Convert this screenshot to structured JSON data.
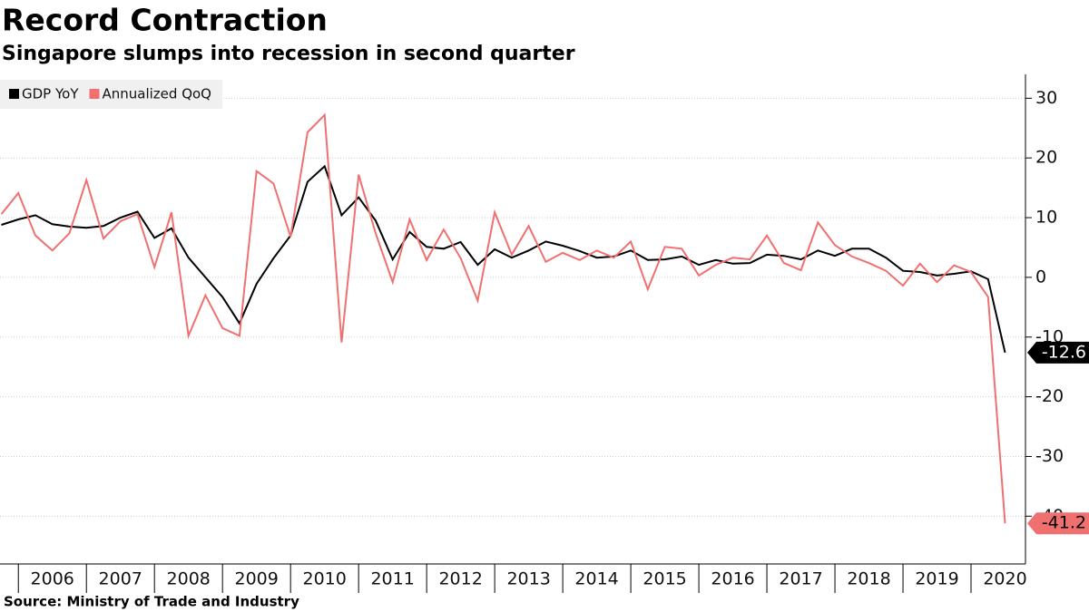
{
  "chart_data": {
    "type": "line",
    "title": "Record Contraction",
    "subtitle": "Singapore slumps into recession in second quarter",
    "source": "Source: Ministry of Trade and Industry",
    "legend_position": "top-left",
    "grid": true,
    "x": [
      2005.75,
      2006,
      2006.25,
      2006.5,
      2006.75,
      2007,
      2007.25,
      2007.5,
      2007.75,
      2008,
      2008.25,
      2008.5,
      2008.75,
      2009,
      2009.25,
      2009.5,
      2009.75,
      2010,
      2010.25,
      2010.5,
      2010.75,
      2011,
      2011.25,
      2011.5,
      2011.75,
      2012,
      2012.25,
      2012.5,
      2012.75,
      2013,
      2013.25,
      2013.5,
      2013.75,
      2014,
      2014.25,
      2014.5,
      2014.75,
      2015,
      2015.25,
      2015.5,
      2015.75,
      2016,
      2016.25,
      2016.5,
      2016.75,
      2017,
      2017.25,
      2017.5,
      2017.75,
      2018,
      2018.25,
      2018.5,
      2018.75,
      2019,
      2019.25,
      2019.5,
      2019.75,
      2020,
      2020.25,
      2020.5
    ],
    "xlim": [
      2005.73,
      2020.8
    ],
    "xticks": [
      {
        "value": 2006.5,
        "label": "2006"
      },
      {
        "value": 2007.5,
        "label": "2007"
      },
      {
        "value": 2008.5,
        "label": "2008"
      },
      {
        "value": 2009.5,
        "label": "2009"
      },
      {
        "value": 2010.5,
        "label": "2010"
      },
      {
        "value": 2011.5,
        "label": "2011"
      },
      {
        "value": 2012.5,
        "label": "2012"
      },
      {
        "value": 2013.5,
        "label": "2013"
      },
      {
        "value": 2014.5,
        "label": "2014"
      },
      {
        "value": 2015.5,
        "label": "2015"
      },
      {
        "value": 2016.5,
        "label": "2016"
      },
      {
        "value": 2017.5,
        "label": "2017"
      },
      {
        "value": 2018.5,
        "label": "2018"
      },
      {
        "value": 2019.5,
        "label": "2019"
      },
      {
        "value": 2020.5,
        "label": "2020"
      }
    ],
    "ylim": [
      -48,
      34
    ],
    "yticks": [
      30,
      20,
      10,
      0,
      -10,
      -20,
      -30,
      -40
    ],
    "series": [
      {
        "name": "GDP YoY",
        "color": "#000000",
        "label_text_color": "#ffffff",
        "values": [
          8.8,
          9.7,
          10.4,
          8.9,
          8.5,
          8.3,
          8.6,
          10,
          11,
          6.6,
          8.2,
          3.3,
          0,
          -3.3,
          -7.7,
          -1.1,
          3.2,
          7,
          16,
          18.6,
          10.4,
          13.4,
          9.5,
          3,
          7.6,
          5.1,
          4.8,
          5.9,
          2.1,
          4.7,
          3.3,
          4.5,
          6,
          5.3,
          4.4,
          3.3,
          3.5,
          4.5,
          2.9,
          3,
          3.5,
          2.1,
          2.9,
          2.3,
          2.4,
          3.8,
          3.6,
          3,
          4.5,
          3.6,
          4.8,
          4.8,
          3.3,
          1.1,
          0.9,
          0.3,
          0.6,
          1,
          -0.3,
          -12.6
        ]
      },
      {
        "name": "Annualized QoQ",
        "color": "#f07070",
        "label_text_color": "#000000",
        "values": [
          10.6,
          14.1,
          7,
          4.5,
          7.4,
          16.3,
          6.5,
          9.4,
          10.6,
          1.7,
          10.9,
          -9.8,
          -3,
          -8.5,
          -9.8,
          17.8,
          15.7,
          6.8,
          24.3,
          27.2,
          -10.9,
          17.2,
          7.4,
          -0.8,
          9.7,
          2.9,
          8,
          3.2,
          -3.9,
          10.9,
          3.8,
          8.6,
          2.6,
          4.1,
          2.9,
          4.5,
          3.3,
          6,
          -2,
          5.1,
          4.8,
          0.3,
          2.1,
          3.3,
          3,
          7,
          2.4,
          1.2,
          9.2,
          5.4,
          3.5,
          2.4,
          1.1,
          -1.4,
          2.3,
          -0.8,
          2,
          0.9,
          -3.3,
          -41.2
        ]
      }
    ]
  }
}
